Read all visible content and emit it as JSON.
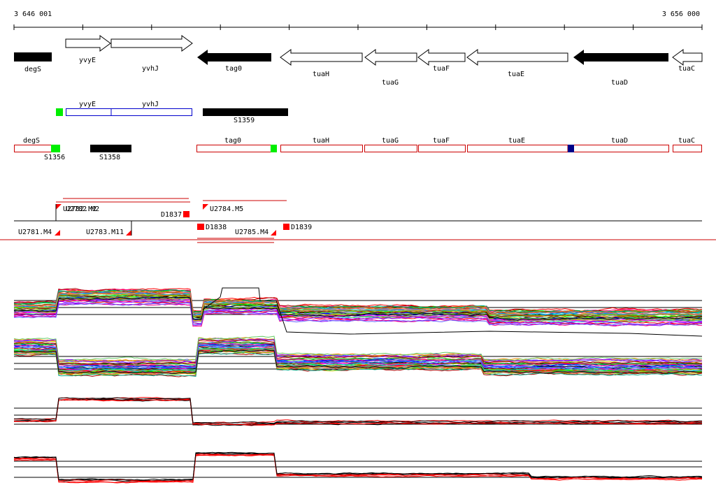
{
  "ruler": {
    "start_label": "3 646 001",
    "end_label": "3 656 000"
  },
  "genes": [
    {
      "id": "degs",
      "label": "degS",
      "filled": true,
      "strand": "none"
    },
    {
      "id": "yvyE",
      "label": "yvyE",
      "filled": false,
      "strand": "plus"
    },
    {
      "id": "yvhJ",
      "label": "yvhJ",
      "filled": false,
      "strand": "plus"
    },
    {
      "id": "tag0",
      "label": "tag0",
      "filled": true,
      "strand": "minus"
    },
    {
      "id": "tuaH",
      "label": "tuaH",
      "filled": false,
      "strand": "minus"
    },
    {
      "id": "tuaG",
      "label": "tuaG",
      "filled": false,
      "strand": "minus"
    },
    {
      "id": "tuaF",
      "label": "tuaF",
      "filled": false,
      "strand": "minus"
    },
    {
      "id": "tuaE",
      "label": "tuaE",
      "filled": false,
      "strand": "minus"
    },
    {
      "id": "tuaD",
      "label": "tuaD",
      "filled": true,
      "strand": "minus"
    },
    {
      "id": "tuaC",
      "label": "tuaC",
      "filled": false,
      "strand": "minus"
    }
  ],
  "transcripts": {
    "upper_labels": [
      "yvyE",
      "yvhJ"
    ],
    "s1359": "S1359",
    "lower_labels": [
      "degS",
      "tag0",
      "tuaH",
      "tuaG",
      "tuaF",
      "tuaE",
      "tuaD",
      "tuaC"
    ],
    "s1356": "S1356",
    "s1358": "S1358"
  },
  "features": {
    "u2782": "U2782.M2",
    "d1837": "D1837",
    "u2784": "U2784.M5",
    "u2781": "U2781.M4",
    "u2783": "U2783.M11",
    "d1838": "D1838",
    "u2785": "U2785.M4",
    "d1839": "D1839"
  },
  "colors": {
    "feature": "#ff0000",
    "green_box": "#00ee00",
    "blue_box": "#000088",
    "transcript_outline": "#cc0000",
    "operon_outline": "#0000cc"
  }
}
